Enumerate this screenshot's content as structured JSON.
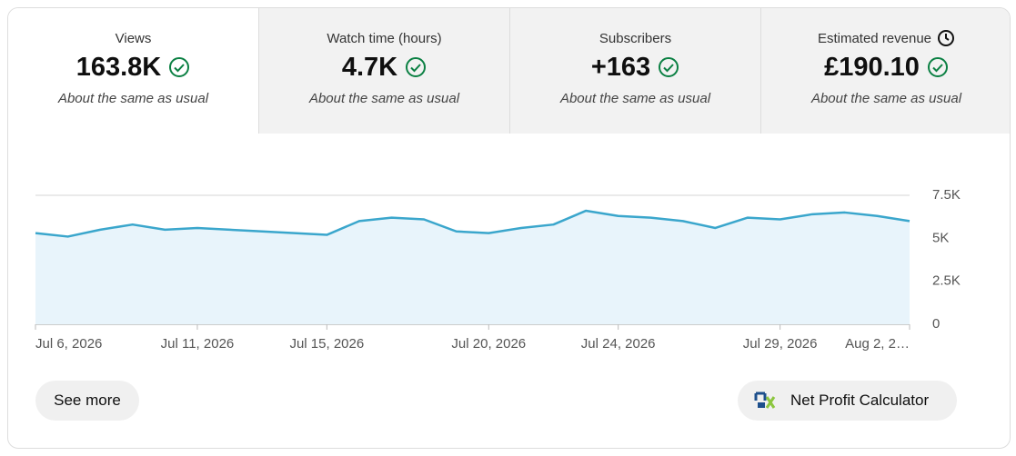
{
  "tabs": [
    {
      "title": "Views",
      "value": "163.8K",
      "note": "About the same as usual"
    },
    {
      "title": "Watch time (hours)",
      "value": "4.7K",
      "note": "About the same as usual"
    },
    {
      "title": "Subscribers",
      "value": "+163",
      "note": "About the same as usual"
    },
    {
      "title": "Estimated revenue",
      "value": "£190.10",
      "note": "About the same as usual"
    }
  ],
  "chart_data": {
    "type": "area",
    "categories": [
      "Jul 6, 2026",
      null,
      null,
      null,
      null,
      "Jul 11, 2026",
      null,
      null,
      null,
      "Jul 15, 2026",
      null,
      null,
      null,
      null,
      "Jul 20, 2026",
      null,
      null,
      null,
      "Jul 24, 2026",
      null,
      null,
      null,
      null,
      "Jul 29, 2026",
      null,
      null,
      null,
      "Aug 2, 2…"
    ],
    "values": [
      5300,
      5100,
      5500,
      5800,
      5500,
      5600,
      5500,
      5400,
      5300,
      5200,
      6000,
      6200,
      6100,
      5400,
      5300,
      5600,
      5800,
      6600,
      6300,
      6200,
      6000,
      5600,
      6200,
      6100,
      6400,
      6500,
      6300,
      6000
    ],
    "color": "#3aa6cc",
    "fill": "#e8f4fb",
    "ylim": [
      0,
      7500
    ],
    "yticks": [
      0,
      {
        "value": 2500,
        "label": "2.5K"
      },
      {
        "value": 5000,
        "label": "5K"
      },
      {
        "value": 7500,
        "label": "7.5K"
      }
    ],
    "grid": true
  },
  "buttons": {
    "see_more": "See more",
    "calculator": "Net Profit Calculator"
  }
}
